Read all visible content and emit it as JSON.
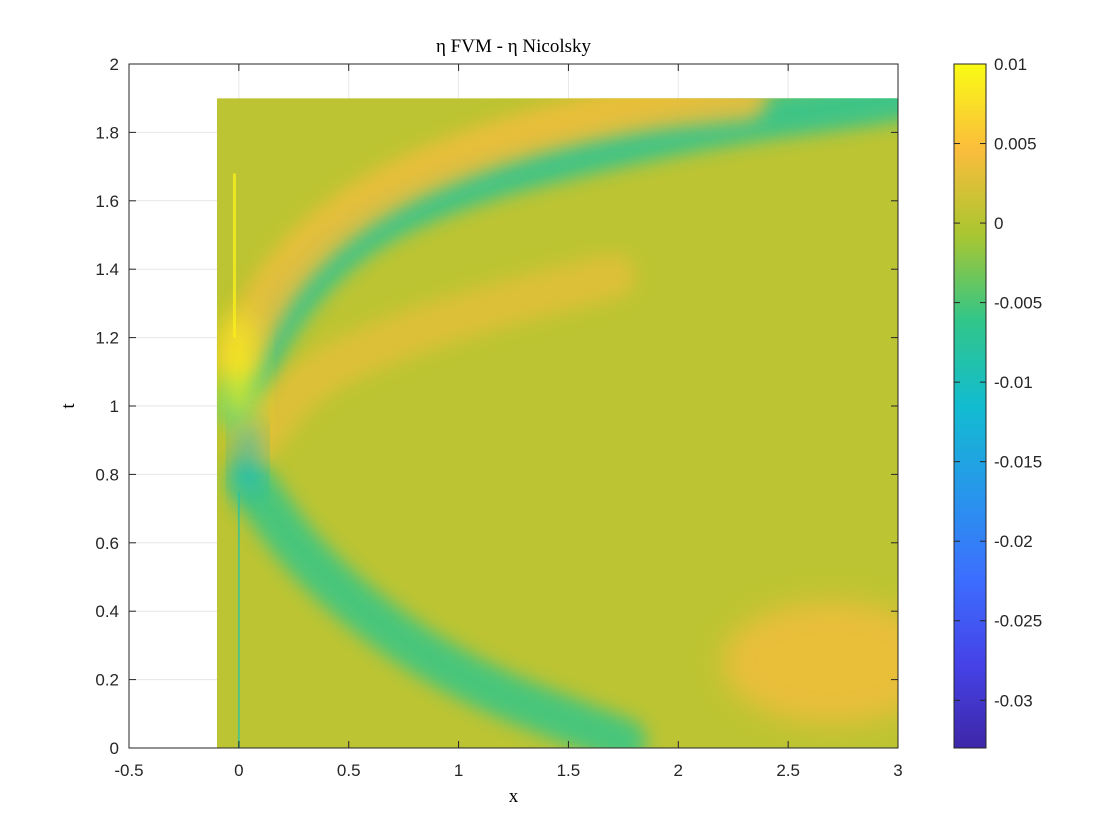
{
  "chart_data": {
    "type": "heatmap",
    "title": "η FVM - η Nicolsky",
    "xlabel": "x",
    "ylabel": "t",
    "xlim": [
      -0.5,
      3
    ],
    "ylim": [
      0,
      2
    ],
    "x_ticks": [
      "-0.5",
      "0",
      "0.5",
      "1",
      "1.5",
      "2",
      "2.5",
      "3"
    ],
    "y_ticks": [
      "0",
      "0.2",
      "0.4",
      "0.6",
      "0.8",
      "1",
      "1.2",
      "1.4",
      "1.6",
      "1.8",
      "2"
    ],
    "x_tick_values": [
      -0.5,
      0,
      0.5,
      1,
      1.5,
      2,
      2.5,
      3
    ],
    "y_tick_values": [
      0,
      0.2,
      0.4,
      0.6,
      0.8,
      1,
      1.2,
      1.4,
      1.6,
      1.8,
      2
    ],
    "data_extent": {
      "x": [
        -0.1,
        3
      ],
      "t": [
        0,
        1.9
      ]
    },
    "grid": true,
    "colormap": "parula",
    "colorbar": {
      "range": [
        -0.033,
        0.01
      ],
      "ticks": [
        "0.01",
        "0.005",
        "0",
        "-0.005",
        "-0.01",
        "-0.015",
        "-0.02",
        "-0.025",
        "-0.03"
      ],
      "tick_values": [
        0.01,
        0.005,
        0,
        -0.005,
        -0.01,
        -0.015,
        -0.02,
        -0.025,
        -0.03
      ]
    },
    "background_value": 0.0005,
    "features": [
      {
        "kind": "band",
        "value": -0.006,
        "path": [
          [
            0.05,
            0.78
          ],
          [
            0.3,
            0.55
          ],
          [
            0.7,
            0.33
          ],
          [
            1.1,
            0.18
          ],
          [
            1.5,
            0.08
          ],
          [
            1.75,
            0.02
          ]
        ]
      },
      {
        "kind": "band",
        "value": -0.007,
        "path": [
          [
            0.0,
            1.0
          ],
          [
            0.15,
            1.25
          ],
          [
            0.5,
            1.5
          ],
          [
            1.0,
            1.65
          ],
          [
            1.6,
            1.75
          ],
          [
            2.2,
            1.83
          ],
          [
            2.8,
            1.88
          ],
          [
            3.0,
            1.9
          ]
        ]
      },
      {
        "kind": "band",
        "value": 0.004,
        "path": [
          [
            0.0,
            1.15
          ],
          [
            0.2,
            1.4
          ],
          [
            0.6,
            1.62
          ],
          [
            1.2,
            1.78
          ],
          [
            1.8,
            1.87
          ],
          [
            2.3,
            1.9
          ]
        ]
      },
      {
        "kind": "band",
        "value": 0.003,
        "path": [
          [
            0.08,
            0.9
          ],
          [
            0.3,
            1.08
          ],
          [
            0.7,
            1.2
          ],
          [
            1.2,
            1.3
          ],
          [
            1.7,
            1.38
          ]
        ]
      },
      {
        "kind": "blob",
        "value": 0.009,
        "center": [
          0.0,
          1.1
        ],
        "radius": [
          0.08,
          0.18
        ]
      },
      {
        "kind": "blob",
        "value": -0.012,
        "center": [
          0.04,
          0.85
        ],
        "radius": [
          0.05,
          0.12
        ]
      },
      {
        "kind": "blob",
        "value": 0.004,
        "center": [
          2.7,
          0.25
        ],
        "radius": [
          0.5,
          0.18
        ]
      }
    ]
  }
}
